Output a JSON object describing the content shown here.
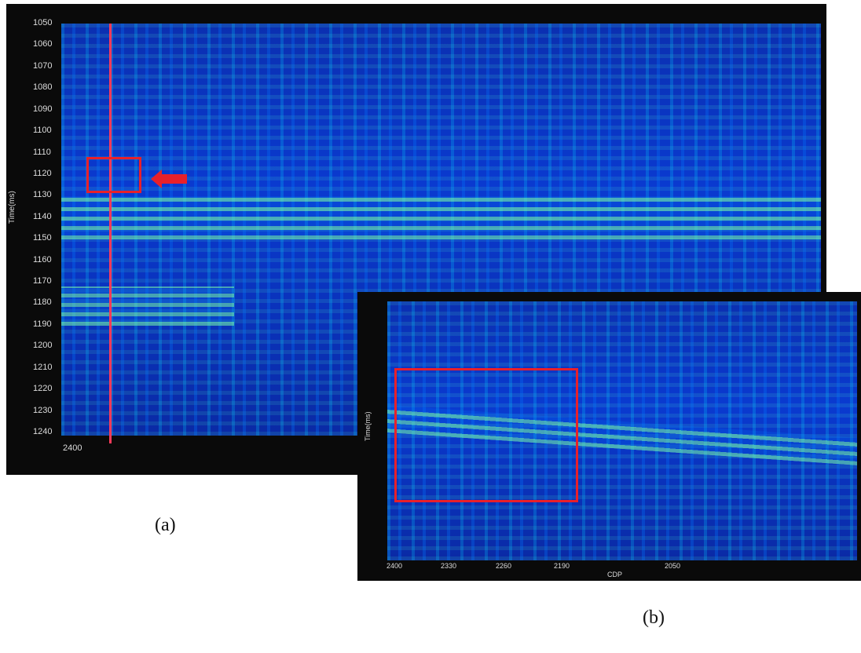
{
  "panel_a": {
    "y_axis_label": "Time(ms)",
    "y_ticks": [
      "1050",
      "1060",
      "1070",
      "1080",
      "1090",
      "1100",
      "1110",
      "1120",
      "1130",
      "1140",
      "1150",
      "1160",
      "1170",
      "1180",
      "1190",
      "1200",
      "1210",
      "1220",
      "1230",
      "1240"
    ],
    "x_ticks": [
      "2400"
    ],
    "caption": "(a)"
  },
  "panel_b": {
    "y_axis_label": "Time(ms)",
    "x_axis_label": "CDP",
    "x_ticks": [
      "2400",
      "2330",
      "2260",
      "2190",
      "2050"
    ],
    "caption": "(b)"
  }
}
